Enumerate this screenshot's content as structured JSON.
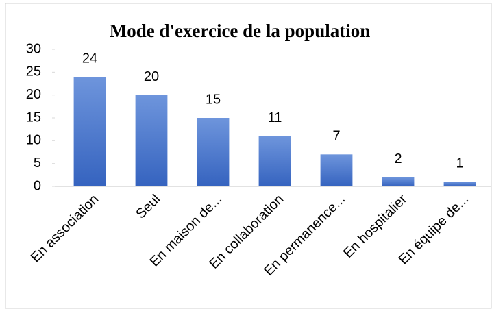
{
  "chart_data": {
    "type": "bar",
    "title": "Mode d'exercice de la population",
    "categories": [
      "En association",
      "Seul",
      "En maison de...",
      "En collaboration",
      "En permanence...",
      "En hospitalier",
      "En équipe de..."
    ],
    "values": [
      24,
      20,
      15,
      11,
      7,
      2,
      1
    ],
    "color": "#4472c4",
    "ylim": [
      0,
      30
    ],
    "yticks": [
      0,
      5,
      10,
      15,
      20,
      25,
      30
    ]
  }
}
